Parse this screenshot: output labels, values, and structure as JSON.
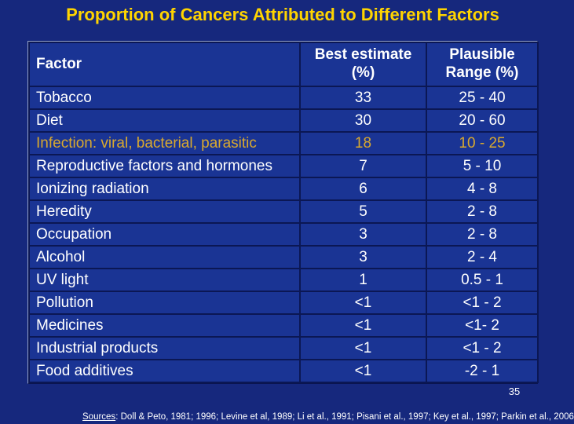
{
  "slide": {
    "title": "Proportion of Cancers Attributed to Different Factors",
    "page_number": "35"
  },
  "colors": {
    "slide_background": "#16287D",
    "table_background": "#1A3494",
    "grid_line": "#0B1754",
    "title_yellow": "#FFD400",
    "highlight_gold": "#D9A92F",
    "text_white": "#FFFFFF"
  },
  "table": {
    "header": {
      "factor": "Factor",
      "best_estimate_line1": "Best estimate",
      "best_estimate_line2": "(%)",
      "range_line1": "Plausible",
      "range_line2": "Range (%)"
    },
    "rows": [
      {
        "factor": "Tobacco",
        "best": "33",
        "range": "25 - 40",
        "highlight": false
      },
      {
        "factor": "Diet",
        "best": "30",
        "range": "20 - 60",
        "highlight": false
      },
      {
        "factor": "Infection: viral, bacterial, parasitic",
        "best": "18",
        "range": "10 - 25",
        "highlight": true
      },
      {
        "factor": "Reproductive factors and hormones",
        "best": "7",
        "range": "5 - 10",
        "highlight": false
      },
      {
        "factor": "Ionizing radiation",
        "best": "6",
        "range": "4 - 8",
        "highlight": false
      },
      {
        "factor": "Heredity",
        "best": "5",
        "range": "2 - 8",
        "highlight": false
      },
      {
        "factor": "Occupation",
        "best": "3",
        "range": "2 - 8",
        "highlight": false
      },
      {
        "factor": "Alcohol",
        "best": "3",
        "range": "2 - 4",
        "highlight": false
      },
      {
        "factor": "UV light",
        "best": "1",
        "range": "0.5 - 1",
        "highlight": false
      },
      {
        "factor": "Pollution",
        "best": "<1",
        "range": "<1 - 2",
        "highlight": false
      },
      {
        "factor": "Medicines",
        "best": "<1",
        "range": "<1- 2",
        "highlight": false
      },
      {
        "factor": "Industrial products",
        "best": "<1",
        "range": "<1 - 2",
        "highlight": false
      },
      {
        "factor": "Food additives",
        "best": "<1",
        "range": "-2 - 1",
        "highlight": false
      }
    ]
  },
  "footer": {
    "sources_label": "Sources",
    "sources_text": ": Doll & Peto, 1981; 1996; Levine et al, 1989; Li et al., 1991; Pisani et al., 1997; Key et al., 1997; Parkin et al., 2006"
  }
}
